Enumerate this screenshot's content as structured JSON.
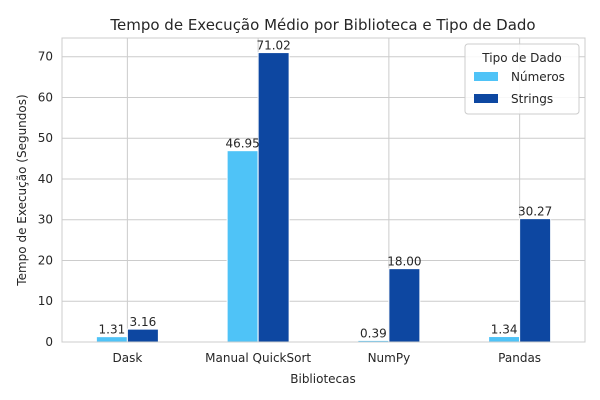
{
  "chart_data": {
    "type": "bar",
    "title": "Tempo de Execução Médio por Biblioteca e Tipo de Dado",
    "xlabel": "Bibliotecas",
    "ylabel": "Tempo de Execução (Segundos)",
    "categories": [
      "Dask",
      "Manual QuickSort",
      "NumPy",
      "Pandas"
    ],
    "series": [
      {
        "name": "Números",
        "values": [
          1.31,
          46.95,
          0.39,
          1.34
        ],
        "labels": [
          "1.31",
          "46.95",
          "0.39",
          "1.34"
        ],
        "color": "#4fc3f7"
      },
      {
        "name": "Strings",
        "values": [
          3.16,
          71.02,
          18.0,
          30.27
        ],
        "labels": [
          "3.16",
          "71.02",
          "18.00",
          "30.27"
        ],
        "color": "#0d47a1"
      }
    ],
    "ylim": [
      0,
      74.6
    ],
    "yticks": [
      0,
      10,
      20,
      30,
      40,
      50,
      60,
      70
    ],
    "grid": true,
    "legend": {
      "title": "Tipo de Dado",
      "placement": "top-right"
    }
  }
}
